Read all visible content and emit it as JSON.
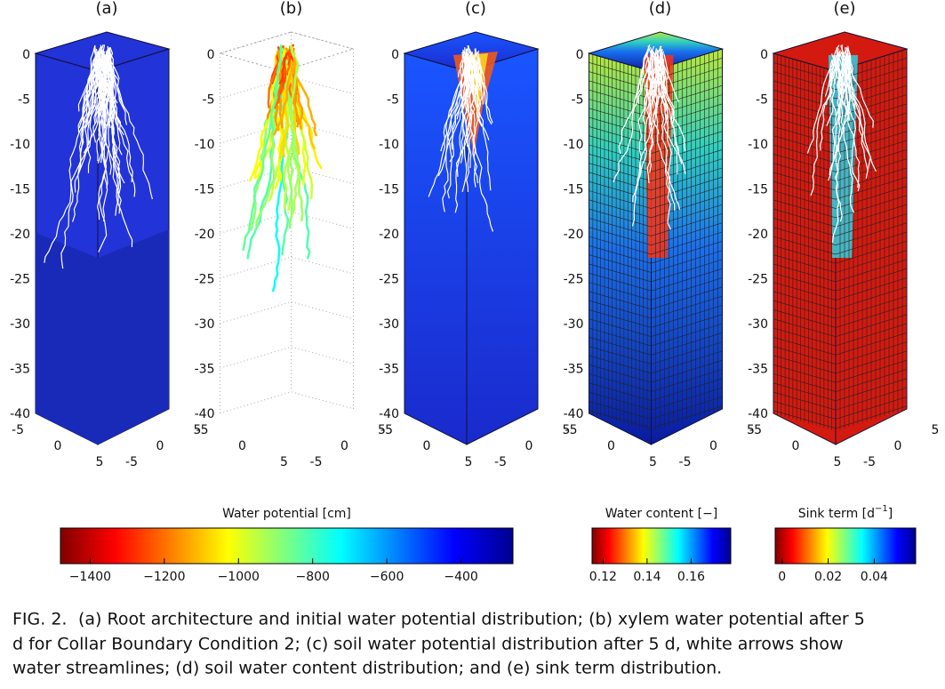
{
  "panels": [
    {
      "label": "(a)",
      "z_ticks": [
        "0",
        "-5",
        "-10",
        "-15",
        "-20",
        "-25",
        "-30",
        "-35",
        "-40"
      ],
      "x_ticks": [
        "-5",
        "0",
        "5"
      ],
      "y_ticks": [
        "-5",
        "0",
        "5"
      ]
    },
    {
      "label": "(b)",
      "z_ticks": [
        "0",
        "-5",
        "-10",
        "-15",
        "-20",
        "-25",
        "-30",
        "-35",
        "-40"
      ],
      "x_ticks": [
        "-5",
        "0",
        "5"
      ],
      "y_ticks": [
        "-5",
        "0",
        "5"
      ]
    },
    {
      "label": "(c)",
      "z_ticks": [
        "0",
        "-5",
        "-10",
        "-15",
        "-20",
        "-25",
        "-30",
        "-35",
        "-40"
      ],
      "x_ticks": [
        "-5",
        "0",
        "5"
      ],
      "y_ticks": [
        "-5",
        "0",
        "5"
      ]
    },
    {
      "label": "(d)",
      "z_ticks": [
        "0",
        "-5",
        "-10",
        "-15",
        "-20",
        "-25",
        "-30",
        "-35",
        "-40"
      ],
      "x_ticks": [
        "-5",
        "0",
        "5"
      ],
      "y_ticks": [
        "-5",
        "0",
        "5"
      ]
    },
    {
      "label": "(e)",
      "z_ticks": [
        "0",
        "-5",
        "-10",
        "-15",
        "-20",
        "-25",
        "-30",
        "-35",
        "-40"
      ],
      "x_ticks": [
        "-5",
        "0",
        "5"
      ],
      "y_ticks": [
        "-5",
        "0",
        "5"
      ]
    }
  ],
  "colorbars": [
    {
      "title": "Water potential [cm]",
      "range": [
        -1480,
        -260
      ],
      "ticks": [
        {
          "value": -1400,
          "label": "−1400"
        },
        {
          "value": -1200,
          "label": "−1200"
        },
        {
          "value": -1000,
          "label": "−1000"
        },
        {
          "value": -800,
          "label": "−800"
        },
        {
          "value": -600,
          "label": "−600"
        },
        {
          "value": -400,
          "label": "−400"
        }
      ]
    },
    {
      "title": "Water content [−]",
      "range": [
        0.115,
        0.178
      ],
      "ticks": [
        0.12,
        0.14,
        0.16
      ]
    },
    {
      "title": "Sink term [d",
      "title_sup": "−1",
      "title_end": "]",
      "range": [
        -0.003,
        0.058
      ],
      "ticks": [
        0,
        0.02,
        0.04
      ]
    }
  ],
  "caption": {
    "label": "FIG. 2.",
    "lines": [
      "(a) Root architecture and initial water potential distribution; (b) xylem water potential after 5",
      "d for Collar Boundary Condition 2; (c) soil water potential distribution after 5 d, white arrows show",
      "water streamlines; (d) soil water content distribution; and (e) sink term distribution."
    ]
  }
}
